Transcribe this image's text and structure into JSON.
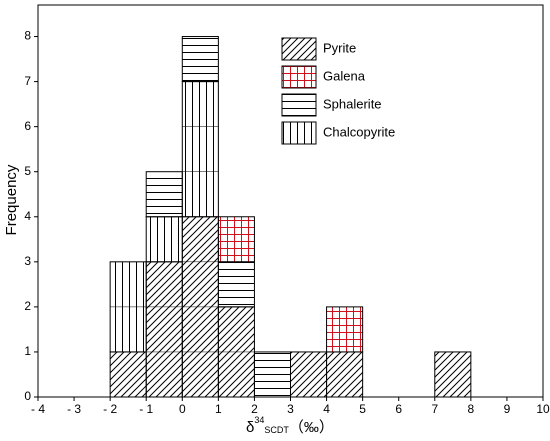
{
  "chart_data": {
    "type": "histogram",
    "ylabel": "Frequency",
    "xlabel": {
      "main": "δ",
      "sup": "34",
      "sub": "SCDT",
      "unit": "（‰）"
    },
    "bins": [
      -4,
      -3,
      -2,
      -1,
      0,
      1,
      2,
      3,
      4,
      5,
      6,
      7,
      8,
      9,
      10
    ],
    "series": [
      {
        "name": "Pyrite",
        "color": "#000000",
        "pattern": "diagonal",
        "values": [
          0,
          0,
          1,
          3,
          4,
          2,
          0,
          1,
          1,
          0,
          0,
          1,
          0,
          0
        ]
      },
      {
        "name": "Galena",
        "color": "#d0101a",
        "pattern": "grid",
        "values": [
          0,
          0,
          0,
          0,
          0,
          1,
          0,
          0,
          1,
          0,
          0,
          0,
          0,
          0
        ]
      },
      {
        "name": "Sphalerite",
        "color": "#000000",
        "pattern": "horizontal",
        "values": [
          0,
          0,
          0,
          1,
          1,
          1,
          1,
          0,
          0,
          0,
          0,
          0,
          0,
          0
        ]
      },
      {
        "name": "Chalcopyrite",
        "color": "#000000",
        "pattern": "vertical",
        "values": [
          0,
          0,
          2,
          1,
          3,
          0,
          0,
          0,
          0,
          0,
          0,
          0,
          0,
          0
        ]
      }
    ],
    "xlim": [
      -4,
      10
    ],
    "xticks": [
      {
        "value": -4,
        "label": "- 4"
      },
      {
        "value": -3,
        "label": "- 3"
      },
      {
        "value": -2,
        "label": "- 2"
      },
      {
        "value": -1,
        "label": "- 1"
      },
      0,
      1,
      2,
      3,
      4,
      5,
      6,
      7,
      8,
      9,
      10
    ],
    "ylim": [
      0,
      8.7
    ],
    "yticks": [
      0,
      1,
      2,
      3,
      4,
      5,
      6,
      7,
      8
    ]
  }
}
